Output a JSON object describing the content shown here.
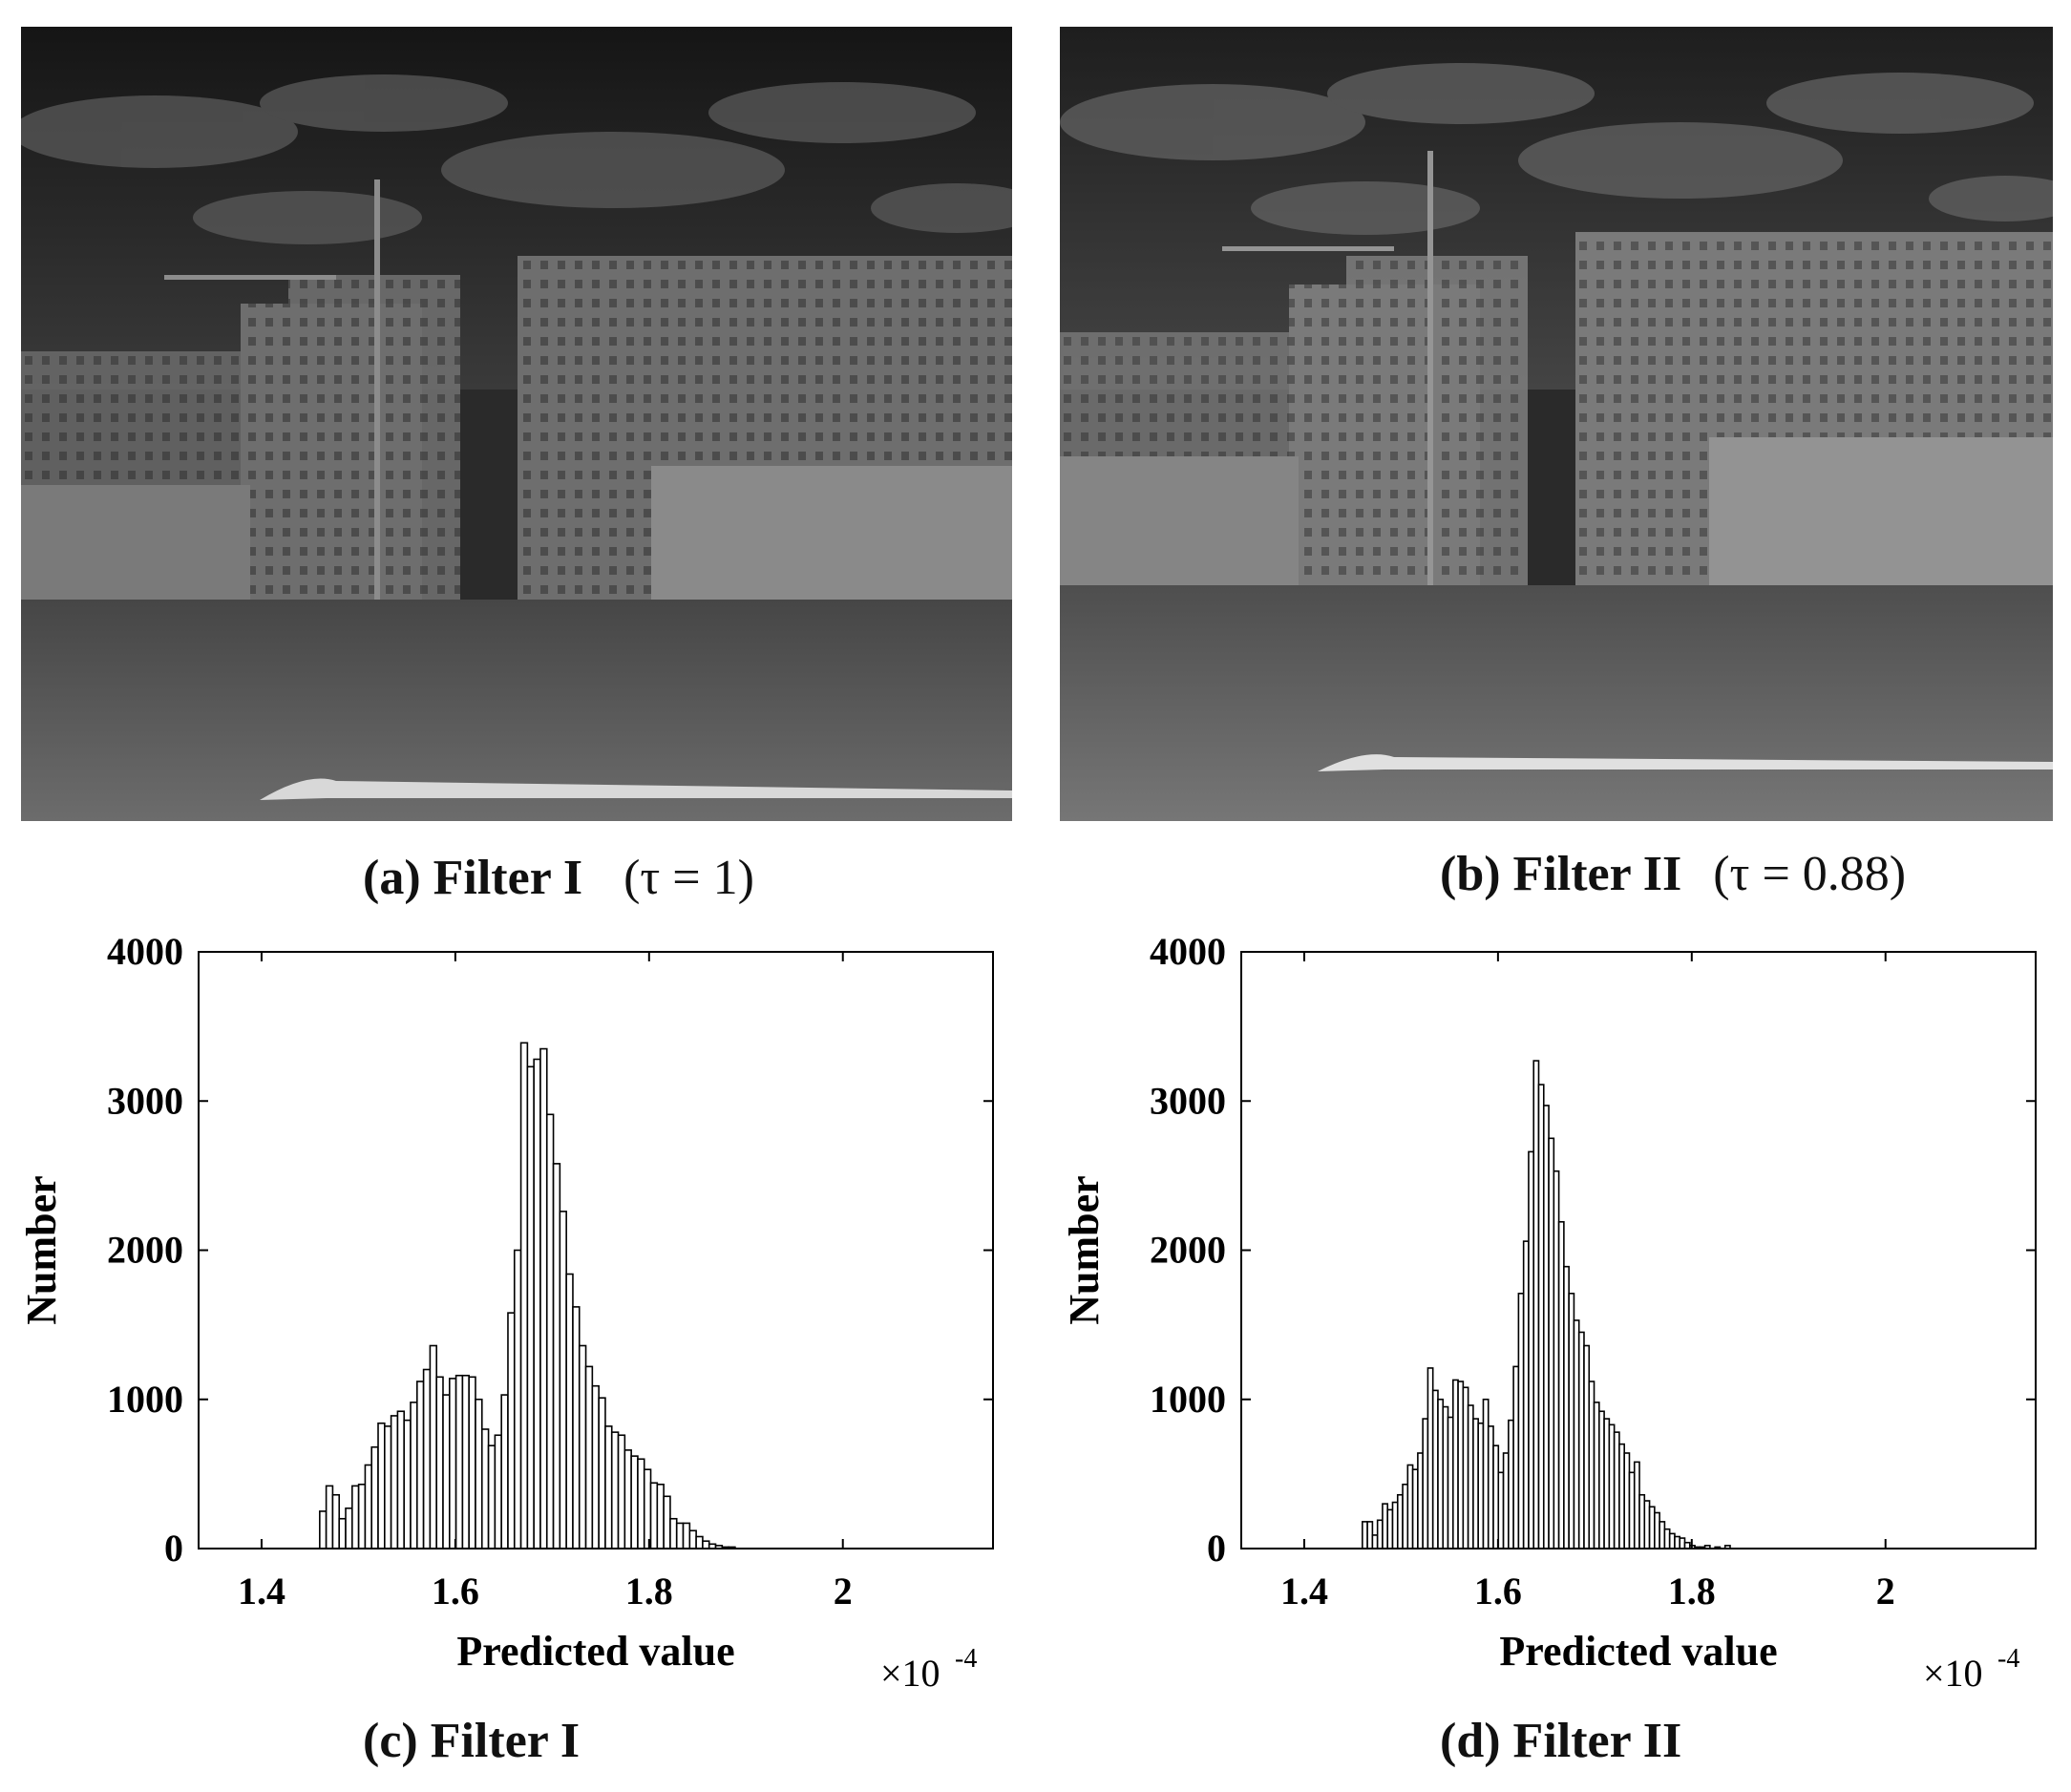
{
  "panels": {
    "a": {
      "label": "(a) Filter I",
      "tau_text": "(τ = 1)"
    },
    "b": {
      "label": "(b) Filter II",
      "tau_text": "(τ = 0.88)"
    },
    "c": {
      "label": "(c) Filter I"
    },
    "d": {
      "label": "(d) Filter II"
    }
  },
  "colors": {
    "bar_fill": "#ffffff",
    "bar_stroke": "#000000",
    "axis": "#000000"
  },
  "chart_data": [
    {
      "type": "bar",
      "panel": "c",
      "xlabel": "Predicted value",
      "ylabel": "Number",
      "x_multiplier": "×10",
      "x_multiplier_exp": "-4",
      "xlim": [
        1.335,
        2.155
      ],
      "ylim": [
        0,
        4000
      ],
      "xticks": [
        "1.4",
        "1.6",
        "1.8",
        "2"
      ],
      "xtick_values": [
        1.4,
        1.6,
        1.8,
        2.0
      ],
      "yticks": [
        "0",
        "1000",
        "2000",
        "3000",
        "4000"
      ],
      "ytick_values": [
        0,
        1000,
        2000,
        3000,
        4000
      ],
      "bin_start": 1.46,
      "bin_width": 0.0067,
      "values": [
        250,
        420,
        360,
        200,
        270,
        420,
        430,
        560,
        680,
        840,
        820,
        890,
        920,
        860,
        980,
        1120,
        1200,
        1360,
        1150,
        1030,
        1140,
        1160,
        1160,
        1150,
        1000,
        800,
        690,
        760,
        1030,
        1580,
        2000,
        3390,
        3230,
        3280,
        3350,
        2910,
        2580,
        2260,
        1840,
        1620,
        1360,
        1220,
        1090,
        1010,
        820,
        780,
        760,
        660,
        620,
        600,
        530,
        440,
        430,
        350,
        200,
        170,
        170,
        120,
        80,
        50,
        30,
        20,
        10,
        10
      ]
    },
    {
      "type": "bar",
      "panel": "d",
      "xlabel": "Predicted value",
      "ylabel": "Number",
      "x_multiplier": "×10",
      "x_multiplier_exp": "-4",
      "xlim": [
        1.335,
        2.155
      ],
      "ylim": [
        0,
        4000
      ],
      "xticks": [
        "1.4",
        "1.6",
        "1.8",
        "2"
      ],
      "xtick_values": [
        1.4,
        1.6,
        1.8,
        2.0
      ],
      "yticks": [
        "0",
        "1000",
        "2000",
        "3000",
        "4000"
      ],
      "ytick_values": [
        0,
        1000,
        2000,
        3000,
        4000
      ],
      "bin_start": 1.46,
      "bin_width": 0.0052,
      "values": [
        180,
        180,
        90,
        190,
        300,
        260,
        310,
        360,
        430,
        560,
        530,
        640,
        870,
        1210,
        1060,
        1000,
        950,
        880,
        1130,
        1120,
        1080,
        960,
        870,
        840,
        1000,
        820,
        690,
        510,
        640,
        860,
        1220,
        1710,
        2060,
        2660,
        3270,
        3110,
        2970,
        2750,
        2530,
        2190,
        1890,
        1710,
        1530,
        1450,
        1360,
        1120,
        980,
        920,
        870,
        830,
        780,
        700,
        640,
        510,
        580,
        360,
        320,
        280,
        240,
        180,
        130,
        100,
        80,
        70,
        40,
        20,
        10,
        10,
        20,
        0,
        10,
        0,
        20
      ]
    }
  ]
}
